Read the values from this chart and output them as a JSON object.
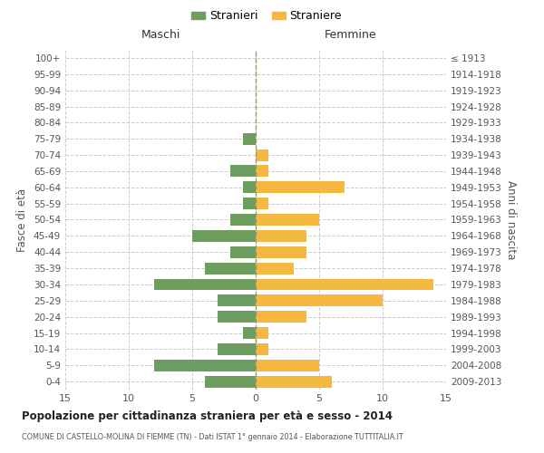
{
  "age_groups": [
    "0-4",
    "5-9",
    "10-14",
    "15-19",
    "20-24",
    "25-29",
    "30-34",
    "35-39",
    "40-44",
    "45-49",
    "50-54",
    "55-59",
    "60-64",
    "65-69",
    "70-74",
    "75-79",
    "80-84",
    "85-89",
    "90-94",
    "95-99",
    "100+"
  ],
  "birth_years": [
    "2009-2013",
    "2004-2008",
    "1999-2003",
    "1994-1998",
    "1989-1993",
    "1984-1988",
    "1979-1983",
    "1974-1978",
    "1969-1973",
    "1964-1968",
    "1959-1963",
    "1954-1958",
    "1949-1953",
    "1944-1948",
    "1939-1943",
    "1934-1938",
    "1929-1933",
    "1924-1928",
    "1919-1923",
    "1914-1918",
    "≤ 1913"
  ],
  "males": [
    4,
    8,
    3,
    1,
    3,
    3,
    8,
    4,
    2,
    5,
    2,
    1,
    1,
    2,
    0,
    1,
    0,
    0,
    0,
    0,
    0
  ],
  "females": [
    6,
    5,
    1,
    1,
    4,
    10,
    14,
    3,
    4,
    4,
    5,
    1,
    7,
    1,
    1,
    0,
    0,
    0,
    0,
    0,
    0
  ],
  "male_color": "#6d9e5f",
  "female_color": "#f5b942",
  "background_color": "#ffffff",
  "grid_color": "#cccccc",
  "title": "Popolazione per cittadinanza straniera per età e sesso - 2014",
  "subtitle": "COMUNE DI CASTELLO-MOLINA DI FIEMME (TN) - Dati ISTAT 1° gennaio 2014 - Elaborazione TUTTITALIA.IT",
  "xlabel_left": "Maschi",
  "xlabel_right": "Femmine",
  "ylabel_left": "Fasce di età",
  "ylabel_right": "Anni di nascita",
  "legend_male": "Stranieri",
  "legend_female": "Straniere",
  "xlim": 15,
  "xtick_vals": [
    -15,
    -10,
    -5,
    0,
    5,
    10,
    15
  ],
  "xtick_labels": [
    "15",
    "10",
    "5",
    "0",
    "5",
    "10",
    "15"
  ]
}
